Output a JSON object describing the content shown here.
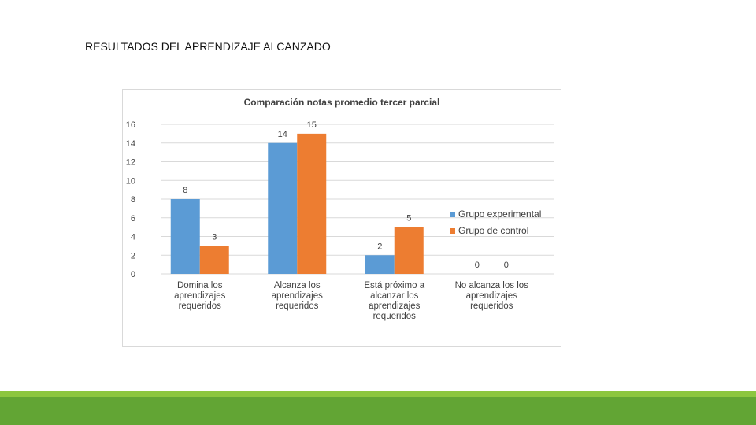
{
  "slide": {
    "title": "RESULTADOS DEL APRENDIZAJE ALCANZADO"
  },
  "colors": {
    "experimental": "#5b9bd5",
    "control": "#ed7d31",
    "grid": "#d9d9d9",
    "footer": "#62a534",
    "footer_light": "#8cc63f"
  },
  "chart_data": {
    "type": "bar",
    "title": "Comparación notas promedio tercer parcial",
    "categories": [
      [
        "Domina los",
        "aprendizajes",
        "requeridos"
      ],
      [
        "Alcanza los",
        "aprendizajes",
        "requeridos"
      ],
      [
        "Está próximo a",
        "alcanzar  los",
        "aprendizajes",
        "requeridos"
      ],
      [
        "No alcanza los  los",
        "aprendizajes",
        "requeridos"
      ]
    ],
    "series": [
      {
        "name": "Grupo experimental",
        "values": [
          8,
          14,
          2,
          0
        ]
      },
      {
        "name": "Grupo de control",
        "values": [
          3,
          15,
          5,
          0
        ]
      }
    ],
    "ylim": [
      0,
      16
    ],
    "yticks": [
      0,
      2,
      4,
      6,
      8,
      10,
      12,
      14,
      16
    ],
    "grid": true,
    "legend": "right",
    "xlabel": "",
    "ylabel": ""
  }
}
